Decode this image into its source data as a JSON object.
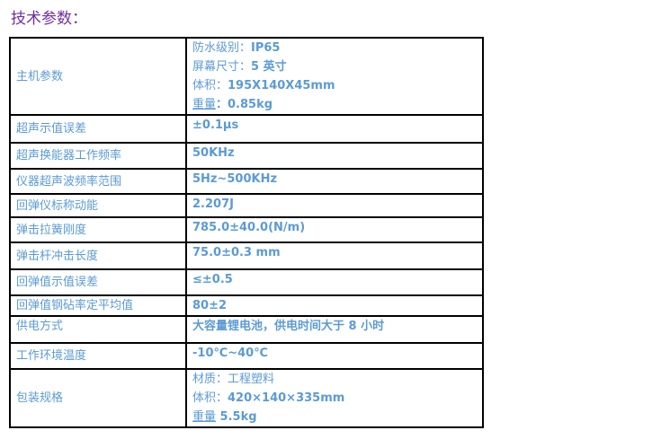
{
  "title": "技术参数：",
  "rows": [
    {
      "label": "主机参数",
      "lines": [
        {
          "k": "防水级别：",
          "v": "IP65"
        },
        {
          "k": "屏幕尺寸：",
          "v": "5 英寸"
        },
        {
          "k": "体积：",
          "v": "195X140X45mm"
        },
        {
          "k": "重量",
          "v": "：0.85kg"
        }
      ]
    },
    {
      "label": "超声示值误差",
      "value": "±0.1μs"
    },
    {
      "label": "超声换能器工作频率",
      "value": "50KHz"
    },
    {
      "label": "仪器超声波频率范围",
      "value": "5Hz~500KHz"
    },
    {
      "label": "回弹仪标称动能",
      "value": "2.207J"
    },
    {
      "label": "弹击拉簧刚度",
      "value": "785.0±40.0(N/m)"
    },
    {
      "label": "弹击杆冲击长度",
      "value": "75.0±0.3 mm"
    },
    {
      "label": "回弹值示值误差",
      "value": "≤±0.5"
    },
    {
      "label": "回弹值钢砧率定平均值",
      "value": "80±2"
    },
    {
      "label": "供电方式",
      "value": "大容量锂电池，供电时间大于 8 小时"
    },
    {
      "label": "工作环境温度",
      "value": "-10℃~40℃"
    },
    {
      "label": "包装规格",
      "lines": [
        {
          "k": "材质：",
          "v": "工程塑料"
        },
        {
          "k": "体积：",
          "v": "420×140×335mm"
        },
        {
          "k": "重量",
          "v": " 5.5kg"
        }
      ]
    }
  ]
}
